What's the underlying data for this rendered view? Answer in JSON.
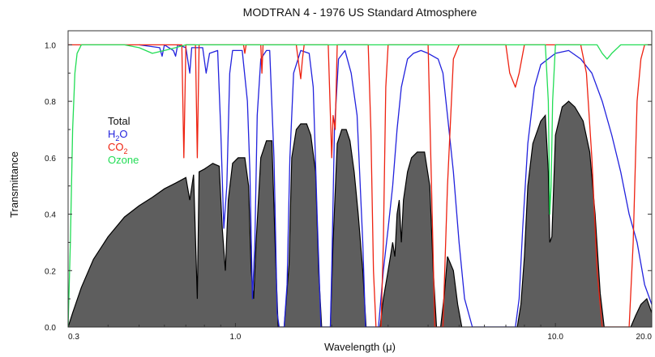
{
  "chart_data": {
    "type": "area",
    "title": "MODTRAN 4 - 1976 US Standard Atmosphere",
    "xlabel": "Wavelength (μ)",
    "ylabel": "Transmittance",
    "x_scale": "log",
    "xlim": [
      0.3,
      20.0
    ],
    "ylim": [
      0.0,
      1.05
    ],
    "x_ticks": [
      0.3,
      1.0,
      10.0,
      20.0
    ],
    "x_tick_labels": [
      "0.3",
      "1.0",
      "10.0",
      "20.0"
    ],
    "y_ticks": [
      0.0,
      0.2,
      0.4,
      0.6,
      0.8,
      1.0
    ],
    "y_tick_labels": [
      "0.0",
      "0.2",
      "0.4",
      "0.6",
      "0.8",
      "1.0"
    ],
    "grid": false,
    "legend_placement": "upper-left",
    "legend": [
      {
        "name": "Total",
        "base": "Total",
        "sub": "",
        "rest": "",
        "color": "#111111"
      },
      {
        "name": "H2O",
        "base": "H",
        "sub": "2",
        "rest": "O",
        "color": "#2222dd"
      },
      {
        "name": "CO2",
        "base": "CO",
        "sub": "2",
        "rest": "",
        "color": "#ee2211"
      },
      {
        "name": "Ozone",
        "base": "Ozone",
        "sub": "",
        "rest": "",
        "color": "#22dd55"
      }
    ],
    "series": [
      {
        "name": "Total",
        "style": "filled",
        "fill": "#5e5e5e",
        "stroke": "#000000",
        "points": [
          [
            0.3,
            0.0
          ],
          [
            0.31,
            0.05
          ],
          [
            0.33,
            0.14
          ],
          [
            0.36,
            0.24
          ],
          [
            0.4,
            0.32
          ],
          [
            0.45,
            0.39
          ],
          [
            0.5,
            0.43
          ],
          [
            0.55,
            0.46
          ],
          [
            0.6,
            0.49
          ],
          [
            0.65,
            0.51
          ],
          [
            0.7,
            0.53
          ],
          [
            0.72,
            0.45
          ],
          [
            0.74,
            0.54
          ],
          [
            0.76,
            0.1
          ],
          [
            0.77,
            0.55
          ],
          [
            0.8,
            0.56
          ],
          [
            0.85,
            0.58
          ],
          [
            0.89,
            0.57
          ],
          [
            0.91,
            0.35
          ],
          [
            0.93,
            0.2
          ],
          [
            0.95,
            0.45
          ],
          [
            0.98,
            0.58
          ],
          [
            1.02,
            0.6
          ],
          [
            1.07,
            0.6
          ],
          [
            1.1,
            0.5
          ],
          [
            1.12,
            0.2
          ],
          [
            1.14,
            0.1
          ],
          [
            1.16,
            0.3
          ],
          [
            1.2,
            0.6
          ],
          [
            1.25,
            0.66
          ],
          [
            1.3,
            0.66
          ],
          [
            1.33,
            0.3
          ],
          [
            1.36,
            0.0
          ],
          [
            1.42,
            0.0
          ],
          [
            1.47,
            0.22
          ],
          [
            1.5,
            0.6
          ],
          [
            1.55,
            0.7
          ],
          [
            1.6,
            0.72
          ],
          [
            1.67,
            0.72
          ],
          [
            1.72,
            0.68
          ],
          [
            1.78,
            0.55
          ],
          [
            1.82,
            0.2
          ],
          [
            1.86,
            0.0
          ],
          [
            1.98,
            0.0
          ],
          [
            2.02,
            0.3
          ],
          [
            2.08,
            0.65
          ],
          [
            2.15,
            0.7
          ],
          [
            2.22,
            0.7
          ],
          [
            2.28,
            0.66
          ],
          [
            2.35,
            0.55
          ],
          [
            2.42,
            0.4
          ],
          [
            2.5,
            0.2
          ],
          [
            2.56,
            0.0
          ],
          [
            2.83,
            0.0
          ],
          [
            2.9,
            0.1
          ],
          [
            2.98,
            0.18
          ],
          [
            3.05,
            0.25
          ],
          [
            3.1,
            0.3
          ],
          [
            3.15,
            0.25
          ],
          [
            3.2,
            0.4
          ],
          [
            3.25,
            0.45
          ],
          [
            3.3,
            0.3
          ],
          [
            3.35,
            0.45
          ],
          [
            3.45,
            0.55
          ],
          [
            3.55,
            0.6
          ],
          [
            3.7,
            0.62
          ],
          [
            3.9,
            0.62
          ],
          [
            4.05,
            0.5
          ],
          [
            4.15,
            0.2
          ],
          [
            4.25,
            0.0
          ],
          [
            4.38,
            0.0
          ],
          [
            4.5,
            0.12
          ],
          [
            4.6,
            0.25
          ],
          [
            4.8,
            0.2
          ],
          [
            4.95,
            0.08
          ],
          [
            5.1,
            0.0
          ],
          [
            7.6,
            0.0
          ],
          [
            7.8,
            0.08
          ],
          [
            8.0,
            0.25
          ],
          [
            8.2,
            0.5
          ],
          [
            8.5,
            0.65
          ],
          [
            9.0,
            0.73
          ],
          [
            9.3,
            0.75
          ],
          [
            9.5,
            0.55
          ],
          [
            9.6,
            0.3
          ],
          [
            9.75,
            0.32
          ],
          [
            10.0,
            0.68
          ],
          [
            10.5,
            0.78
          ],
          [
            11.0,
            0.8
          ],
          [
            11.5,
            0.78
          ],
          [
            12.2,
            0.73
          ],
          [
            12.8,
            0.62
          ],
          [
            13.3,
            0.4
          ],
          [
            13.8,
            0.12
          ],
          [
            14.2,
            0.0
          ],
          [
            17.2,
            0.0
          ],
          [
            17.8,
            0.04
          ],
          [
            18.5,
            0.08
          ],
          [
            19.3,
            0.1
          ],
          [
            20.0,
            0.05
          ]
        ]
      },
      {
        "name": "H2O",
        "style": "line",
        "color": "#2222dd",
        "points": [
          [
            0.5,
            1.0
          ],
          [
            0.58,
            0.99
          ],
          [
            0.59,
            0.96
          ],
          [
            0.6,
            1.0
          ],
          [
            0.64,
            0.98
          ],
          [
            0.65,
            0.96
          ],
          [
            0.66,
            1.0
          ],
          [
            0.7,
            0.99
          ],
          [
            0.72,
            0.9
          ],
          [
            0.73,
            0.99
          ],
          [
            0.79,
            0.99
          ],
          [
            0.81,
            0.9
          ],
          [
            0.83,
            0.97
          ],
          [
            0.88,
            0.98
          ],
          [
            0.9,
            0.7
          ],
          [
            0.92,
            0.35
          ],
          [
            0.94,
            0.5
          ],
          [
            0.96,
            0.9
          ],
          [
            0.98,
            0.98
          ],
          [
            1.05,
            0.98
          ],
          [
            1.09,
            0.8
          ],
          [
            1.11,
            0.55
          ],
          [
            1.13,
            0.1
          ],
          [
            1.15,
            0.3
          ],
          [
            1.17,
            0.75
          ],
          [
            1.2,
            0.95
          ],
          [
            1.25,
            0.98
          ],
          [
            1.28,
            0.98
          ],
          [
            1.32,
            0.6
          ],
          [
            1.35,
            0.05
          ],
          [
            1.37,
            0.0
          ],
          [
            1.42,
            0.0
          ],
          [
            1.45,
            0.15
          ],
          [
            1.48,
            0.6
          ],
          [
            1.52,
            0.9
          ],
          [
            1.6,
            0.98
          ],
          [
            1.7,
            0.97
          ],
          [
            1.75,
            0.85
          ],
          [
            1.8,
            0.4
          ],
          [
            1.85,
            0.0
          ],
          [
            1.98,
            0.0
          ],
          [
            2.0,
            0.2
          ],
          [
            2.04,
            0.7
          ],
          [
            2.1,
            0.95
          ],
          [
            2.2,
            0.98
          ],
          [
            2.3,
            0.9
          ],
          [
            2.4,
            0.75
          ],
          [
            2.5,
            0.3
          ],
          [
            2.55,
            0.0
          ],
          [
            2.8,
            0.0
          ],
          [
            2.9,
            0.2
          ],
          [
            3.0,
            0.35
          ],
          [
            3.1,
            0.5
          ],
          [
            3.2,
            0.7
          ],
          [
            3.3,
            0.85
          ],
          [
            3.45,
            0.95
          ],
          [
            3.6,
            0.97
          ],
          [
            3.8,
            0.98
          ],
          [
            4.0,
            0.97
          ],
          [
            4.3,
            0.95
          ],
          [
            4.45,
            0.9
          ],
          [
            4.6,
            0.75
          ],
          [
            4.8,
            0.55
          ],
          [
            5.0,
            0.3
          ],
          [
            5.2,
            0.1
          ],
          [
            5.5,
            0.0
          ],
          [
            7.5,
            0.0
          ],
          [
            7.7,
            0.1
          ],
          [
            7.9,
            0.35
          ],
          [
            8.2,
            0.65
          ],
          [
            8.6,
            0.85
          ],
          [
            9.0,
            0.93
          ],
          [
            10.0,
            0.97
          ],
          [
            11.0,
            0.98
          ],
          [
            12.0,
            0.95
          ],
          [
            13.0,
            0.9
          ],
          [
            14.0,
            0.8
          ],
          [
            15.0,
            0.68
          ],
          [
            16.0,
            0.55
          ],
          [
            17.0,
            0.4
          ],
          [
            18.0,
            0.3
          ],
          [
            19.0,
            0.15
          ],
          [
            20.0,
            0.08
          ]
        ]
      },
      {
        "name": "CO2",
        "style": "line",
        "color": "#ee2211",
        "points": [
          [
            0.3,
            1.0
          ],
          [
            0.68,
            1.0
          ],
          [
            0.69,
            0.6
          ],
          [
            0.7,
            1.0
          ],
          [
            0.75,
            1.0
          ],
          [
            0.76,
            0.6
          ],
          [
            0.77,
            1.0
          ],
          [
            1.06,
            1.0
          ],
          [
            1.07,
            0.97
          ],
          [
            1.08,
            1.0
          ],
          [
            1.2,
            1.0
          ],
          [
            1.21,
            0.9
          ],
          [
            1.22,
            1.0
          ],
          [
            1.55,
            1.0
          ],
          [
            1.57,
            0.95
          ],
          [
            1.6,
            0.88
          ],
          [
            1.62,
            0.95
          ],
          [
            1.64,
            1.0
          ],
          [
            1.95,
            1.0
          ],
          [
            2.0,
            0.6
          ],
          [
            2.02,
            0.75
          ],
          [
            2.05,
            0.7
          ],
          [
            2.08,
            1.0
          ],
          [
            2.6,
            1.0
          ],
          [
            2.65,
            0.7
          ],
          [
            2.7,
            0.2
          ],
          [
            2.75,
            0.0
          ],
          [
            2.85,
            0.0
          ],
          [
            2.9,
            0.3
          ],
          [
            2.95,
            0.85
          ],
          [
            3.0,
            1.0
          ],
          [
            4.0,
            1.0
          ],
          [
            4.1,
            0.5
          ],
          [
            4.2,
            0.0
          ],
          [
            4.45,
            0.0
          ],
          [
            4.6,
            0.5
          ],
          [
            4.8,
            0.95
          ],
          [
            5.0,
            1.0
          ],
          [
            7.0,
            1.0
          ],
          [
            7.2,
            0.9
          ],
          [
            7.5,
            0.85
          ],
          [
            7.7,
            0.9
          ],
          [
            8.0,
            1.0
          ],
          [
            12.0,
            1.0
          ],
          [
            12.5,
            0.9
          ],
          [
            13.0,
            0.6
          ],
          [
            13.5,
            0.2
          ],
          [
            14.0,
            0.0
          ],
          [
            17.0,
            0.0
          ],
          [
            17.5,
            0.3
          ],
          [
            18.0,
            0.8
          ],
          [
            18.5,
            0.95
          ],
          [
            19.0,
            1.0
          ],
          [
            20.0,
            1.0
          ]
        ]
      },
      {
        "name": "Ozone",
        "style": "line",
        "color": "#22dd55",
        "points": [
          [
            0.3,
            0.0
          ],
          [
            0.305,
            0.3
          ],
          [
            0.31,
            0.7
          ],
          [
            0.315,
            0.9
          ],
          [
            0.32,
            0.97
          ],
          [
            0.33,
            1.0
          ],
          [
            0.45,
            1.0
          ],
          [
            0.5,
            0.99
          ],
          [
            0.55,
            0.97
          ],
          [
            0.6,
            0.98
          ],
          [
            0.65,
            0.99
          ],
          [
            0.7,
            1.0
          ],
          [
            9.3,
            1.0
          ],
          [
            9.5,
            0.8
          ],
          [
            9.6,
            0.4
          ],
          [
            9.7,
            0.5
          ],
          [
            9.8,
            0.8
          ],
          [
            10.0,
            1.0
          ],
          [
            13.5,
            1.0
          ],
          [
            14.0,
            0.97
          ],
          [
            14.5,
            0.95
          ],
          [
            15.0,
            0.97
          ],
          [
            16.0,
            1.0
          ],
          [
            20.0,
            1.0
          ]
        ]
      }
    ]
  }
}
